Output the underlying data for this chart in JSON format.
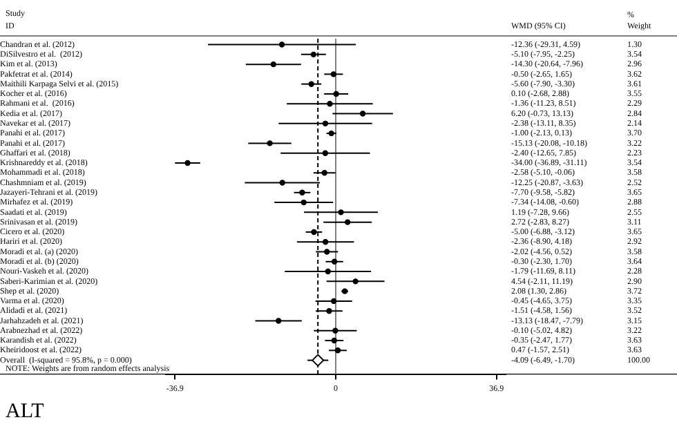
{
  "chart_data": {
    "type": "scatter",
    "orientation": "horizontal",
    "title": "ALT",
    "categories": [
      "Chandran et al. (2012)",
      "DiSilvestro et al.  (2012)",
      "Kim et al. (2013)",
      "Pakfetrat et al. (2014)",
      "Maithili Karpaga Selvi et al. (2015)",
      "Kocher et al. (2016)",
      "Rahmani et al.  (2016)",
      "Kedia et al. (2017)",
      "Navekar et al. (2017)",
      "Panahi et al. (2017)",
      "Panahi et al. (2017)",
      "Ghaffari et al. (2018)",
      "Krishnareddy et al. (2018)",
      "Mohammadi et al. (2018)",
      "Chashmniam et al. (2019)",
      "Jazayeri-Tehrani et al. (2019)",
      "Mirhafez et al. (2019)",
      "Saadati et al. (2019)",
      "Srinivasan et al. (2019)",
      "Cicero et al. (2020)",
      "Hariri et al. (2020)",
      "Moradi et al. (a) (2020)",
      "Moradi et al. (b) (2020)",
      "Nouri-Vaskeh et al. (2020)",
      "Saberi-Karimian et al. (2020)",
      "Shep et al. (2020)",
      "Varma et al. (2020)",
      "Alidadi et al. (2021)",
      "Jarhahzadeh et al. (2021)",
      "Arabnezhad et al. (2022)",
      "Karandish et al. (2022)",
      "Kheiridoost et al. (2022)",
      "Overall  (I-squared = 95.8%, p = 0.000)"
    ],
    "series": [
      {
        "type": "scatter",
        "marker": "circle",
        "color": "#000000",
        "values": [
          -12.36,
          -5.1,
          -14.3,
          -0.5,
          -5.6,
          0.1,
          -1.36,
          6.2,
          -2.38,
          -1.0,
          -15.13,
          -2.4,
          -34.0,
          -2.58,
          -12.25,
          -7.7,
          -7.34,
          1.19,
          2.72,
          -5.0,
          -2.36,
          -2.02,
          -0.3,
          -1.79,
          4.54,
          2.08,
          -0.45,
          -1.51,
          -13.13,
          -0.1,
          -0.35,
          0.47,
          null
        ],
        "errors": [
          [
            -29.31,
            4.59
          ],
          [
            -7.95,
            -2.25
          ],
          [
            -20.64,
            -7.96
          ],
          [
            -2.65,
            1.65
          ],
          [
            -7.9,
            -3.3
          ],
          [
            -2.68,
            2.88
          ],
          [
            -11.23,
            8.51
          ],
          [
            -0.73,
            13.13
          ],
          [
            -13.11,
            8.35
          ],
          [
            -2.13,
            0.13
          ],
          [
            -20.08,
            -10.18
          ],
          [
            -12.65,
            7.85
          ],
          [
            -36.89,
            -31.11
          ],
          [
            -5.1,
            -0.06
          ],
          [
            -20.87,
            -3.63
          ],
          [
            -9.58,
            -5.82
          ],
          [
            -14.08,
            -0.6
          ],
          [
            -7.28,
            9.66
          ],
          [
            -2.83,
            8.27
          ],
          [
            -6.88,
            -3.12
          ],
          [
            -8.9,
            4.18
          ],
          [
            -4.56,
            0.52
          ],
          [
            -2.3,
            1.7
          ],
          [
            -11.69,
            8.11
          ],
          [
            -2.11,
            11.19
          ],
          [
            1.3,
            2.86
          ],
          [
            -4.65,
            3.75
          ],
          [
            -4.58,
            1.56
          ],
          [
            -18.47,
            -7.79
          ],
          [
            -5.02,
            4.82
          ],
          [
            -2.47,
            1.77
          ],
          [
            -1.57,
            2.51
          ],
          null
        ]
      },
      {
        "type": "scatter",
        "marker": "diamond",
        "color": "#000000",
        "values": [
          null,
          null,
          null,
          null,
          null,
          null,
          null,
          null,
          null,
          null,
          null,
          null,
          null,
          null,
          null,
          null,
          null,
          null,
          null,
          null,
          null,
          null,
          null,
          null,
          null,
          null,
          null,
          null,
          null,
          null,
          null,
          null,
          -4.09
        ],
        "errors": [
          null,
          null,
          null,
          null,
          null,
          null,
          null,
          null,
          null,
          null,
          null,
          null,
          null,
          null,
          null,
          null,
          null,
          null,
          null,
          null,
          null,
          null,
          null,
          null,
          null,
          null,
          null,
          null,
          null,
          null,
          null,
          null,
          [
            -6.49,
            -1.7
          ]
        ]
      }
    ],
    "xlim": [
      -39,
      39
    ],
    "xticks": [
      -36.9,
      0,
      36.9
    ],
    "ref_lines": [
      {
        "axis": "x",
        "value": 0,
        "color": "#808080",
        "line_style": "solid"
      },
      {
        "axis": "x",
        "value": -4.09,
        "color": "#000000",
        "line_style": "dashed"
      }
    ],
    "annotations": [
      "Study",
      "ID",
      "WMD (95% CI)",
      "%",
      "Weight",
      "-12.36 (-29.31, 4.59)",
      "-5.10 (-7.95, -2.25)",
      "-14.30 (-20.64, -7.96)",
      "-0.50 (-2.65, 1.65)",
      "-5.60 (-7.90, -3.30)",
      "0.10 (-2.68, 2.88)",
      "-1.36 (-11.23, 8.51)",
      "6.20 (-0.73, 13.13)",
      "-2.38 (-13.11, 8.35)",
      "-1.00 (-2.13, 0.13)",
      "-15.13 (-20.08, -10.18)",
      "-2.40 (-12.65, 7.85)",
      "-34.00 (-36.89, -31.11)",
      "-2.58 (-5.10, -0.06)",
      "-12.25 (-20.87, -3.63)",
      "-7.70 (-9.58, -5.82)",
      "-7.34 (-14.08, -0.60)",
      "1.19 (-7.28, 9.66)",
      "2.72 (-2.83, 8.27)",
      "-5.00 (-6.88, -3.12)",
      "-2.36 (-8.90, 4.18)",
      "-2.02 (-4.56, 0.52)",
      "-0.30 (-2.30, 1.70)",
      "-1.79 (-11.69, 8.11)",
      "4.54 (-2.11, 11.19)",
      "2.08 (1.30, 2.86)",
      "-0.45 (-4.65, 3.75)",
      "-1.51 (-4.58, 1.56)",
      "-13.13 (-18.47, -7.79)",
      "-0.10 (-5.02, 4.82)",
      "-0.35 (-2.47, 1.77)",
      "0.47 (-1.57, 2.51)",
      "-4.09 (-6.49, -1.70)",
      "1.30",
      "3.54",
      "2.96",
      "3.62",
      "3.61",
      "3.55",
      "2.29",
      "2.84",
      "2.14",
      "3.70",
      "3.22",
      "2.23",
      "3.54",
      "3.58",
      "2.52",
      "3.65",
      "2.88",
      "2.55",
      "3.11",
      "3.65",
      "2.92",
      "3.58",
      "3.64",
      "2.28",
      "2.90",
      "3.72",
      "3.35",
      "3.52",
      "3.15",
      "3.22",
      "3.63",
      "3.63",
      "100.00",
      "NOTE: Weights are from random effects analysis"
    ],
    "grid": false,
    "legend": false
  }
}
